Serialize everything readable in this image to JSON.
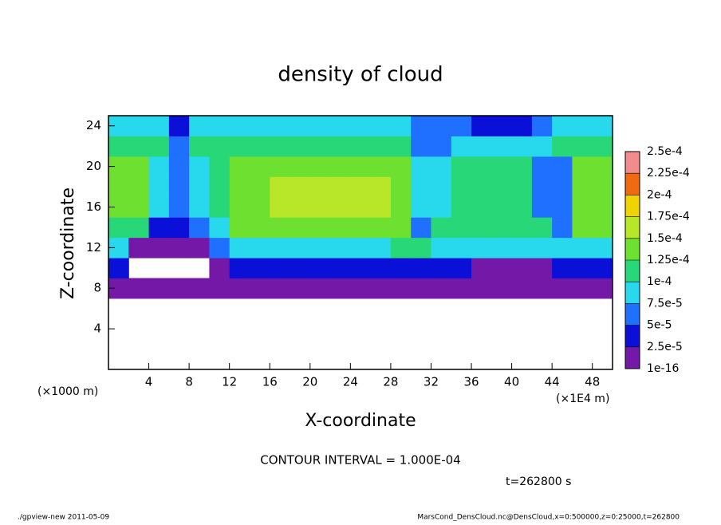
{
  "chart_data": {
    "type": "heatmap",
    "title": "density of cloud",
    "x_label": "X-coordinate",
    "y_label": "Z-coordinate",
    "x_unit_left": "(×1000 m)",
    "x_unit_right": "(×1E4 m)",
    "contour_note": "CONTOUR INTERVAL = 1.000E-04",
    "time_note": "t=262800 s",
    "footer_left": "./gpview-new  2011-05-09",
    "footer_right": "MarsCond_DensCloud.nc@DensCloud,x=0:500000,z=0:25000,t=262800",
    "xlim": [
      0,
      50
    ],
    "ylim": [
      0,
      25
    ],
    "xticks": [
      4,
      8,
      12,
      16,
      20,
      24,
      28,
      32,
      36,
      40,
      44,
      48
    ],
    "yticks": [
      4,
      8,
      12,
      16,
      20,
      24
    ],
    "x_edges": [
      0,
      2,
      4,
      6,
      8,
      10,
      12,
      14,
      16,
      18,
      20,
      22,
      24,
      26,
      28,
      30,
      32,
      34,
      36,
      38,
      40,
      42,
      44,
      46,
      48,
      50
    ],
    "z_edges": [
      7,
      9,
      11,
      13,
      15,
      17,
      19,
      21,
      23,
      25
    ],
    "values": [
      [
        1e-05,
        1e-05,
        1e-05,
        1e-05,
        1e-05,
        1e-05,
        1e-05,
        1e-05,
        1e-05,
        1e-05,
        1e-05,
        1e-05,
        1e-05,
        1e-05,
        1e-05,
        1e-05,
        1e-05,
        1e-05,
        1e-05,
        1e-05,
        1e-05,
        1e-05,
        1e-05,
        1e-05,
        1e-05
      ],
      [
        4e-05,
        null,
        null,
        null,
        null,
        1e-05,
        3e-05,
        3e-05,
        3e-05,
        3e-05,
        3e-05,
        3e-05,
        3e-05,
        3e-05,
        3e-05,
        4e-05,
        4e-05,
        4e-05,
        2e-05,
        2e-05,
        2e-05,
        2e-05,
        4e-05,
        4e-05,
        4e-05
      ],
      [
        8e-05,
        1e-05,
        1e-05,
        1e-05,
        1e-05,
        6e-05,
        8.5e-05,
        8.5e-05,
        8.5e-05,
        8.5e-05,
        8.5e-05,
        8.5e-05,
        8.5e-05,
        8.5e-05,
        0.00011,
        0.00011,
        8.5e-05,
        8.5e-05,
        8.5e-05,
        8.5e-05,
        8.5e-05,
        8.5e-05,
        8.5e-05,
        8.5e-05,
        8.5e-05
      ],
      [
        0.00011,
        0.00011,
        4e-05,
        4e-05,
        6e-05,
        8e-05,
        0.00013,
        0.00013,
        0.00013,
        0.00013,
        0.00013,
        0.00013,
        0.00013,
        0.00013,
        0.00013,
        6e-05,
        0.00011,
        0.00011,
        0.00011,
        0.00011,
        0.00011,
        0.00011,
        6e-05,
        0.00013,
        0.00013
      ],
      [
        0.00013,
        0.00013,
        9e-05,
        6e-05,
        9e-05,
        0.00012,
        0.00014,
        0.00014,
        0.000155,
        0.000155,
        0.000155,
        0.000155,
        0.000155,
        0.000155,
        0.00014,
        8e-05,
        8e-05,
        0.00011,
        0.00011,
        0.00011,
        0.00011,
        6e-05,
        6e-05,
        0.00013,
        0.00013
      ],
      [
        0.00013,
        0.00013,
        9e-05,
        6e-05,
        9e-05,
        0.00012,
        0.00014,
        0.00014,
        0.000155,
        0.000155,
        0.000155,
        0.000155,
        0.000155,
        0.000155,
        0.00014,
        8e-05,
        8e-05,
        0.00011,
        0.00011,
        0.00011,
        0.00011,
        6e-05,
        6e-05,
        0.00013,
        0.00013
      ],
      [
        0.00013,
        0.00013,
        9e-05,
        6e-05,
        9e-05,
        0.00012,
        0.00014,
        0.00014,
        0.00014,
        0.00014,
        0.00014,
        0.00014,
        0.00014,
        0.00014,
        0.00014,
        8e-05,
        8e-05,
        0.00011,
        0.00011,
        0.00011,
        0.00011,
        6e-05,
        6e-05,
        0.00013,
        0.00013
      ],
      [
        0.00012,
        0.00012,
        0.00012,
        6e-05,
        0.00012,
        0.00012,
        0.00012,
        0.00012,
        0.00012,
        0.00012,
        0.00012,
        0.00012,
        0.00012,
        0.00012,
        0.00012,
        7e-05,
        7e-05,
        9e-05,
        9e-05,
        9e-05,
        8e-05,
        8e-05,
        0.00011,
        0.00011,
        0.00011
      ],
      [
        8.5e-05,
        8.5e-05,
        8.5e-05,
        4e-05,
        9e-05,
        9e-05,
        9e-05,
        9e-05,
        9e-05,
        9e-05,
        9e-05,
        9e-05,
        9e-05,
        9e-05,
        9e-05,
        6e-05,
        6e-05,
        6e-05,
        3e-05,
        3e-05,
        3e-05,
        6e-05,
        8.5e-05,
        8.5e-05,
        8.5e-05
      ]
    ],
    "colorbar": {
      "ticks": [
        {
          "value": 1e-16,
          "label": "1e-16"
        },
        {
          "value": 2.5e-05,
          "label": "2.5e-5"
        },
        {
          "value": 5e-05,
          "label": "5e-5"
        },
        {
          "value": 7.5e-05,
          "label": "7.5e-5"
        },
        {
          "value": 0.0001,
          "label": "1e-4"
        },
        {
          "value": 0.000125,
          "label": "1.25e-4"
        },
        {
          "value": 0.00015,
          "label": "1.5e-4"
        },
        {
          "value": 0.000175,
          "label": "1.75e-4"
        },
        {
          "value": 0.0002,
          "label": "2e-4"
        },
        {
          "value": 0.000225,
          "label": "2.25e-4"
        },
        {
          "value": 0.00025,
          "label": "2.5e-4"
        }
      ],
      "colors": [
        "#7418a8",
        "#0a10d8",
        "#2070ff",
        "#28d8ec",
        "#28d878",
        "#6ee030",
        "#b8e628",
        "#f0d400",
        "#f06a10",
        "#f08c8c"
      ]
    }
  }
}
